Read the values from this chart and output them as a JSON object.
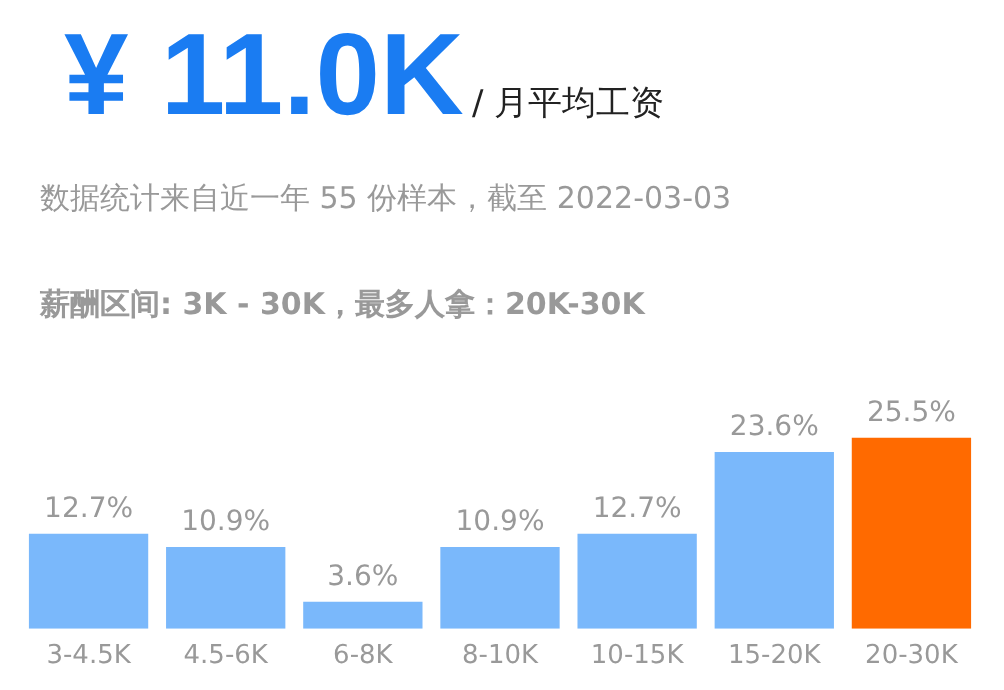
{
  "chart_data": {
    "type": "bar",
    "title": "¥ 11.0K",
    "subtitle": "数据统计来自近一年 55 份样本，截至 2022-03-03",
    "annotations": [
      "/ 月平均工资",
      "薪酬区间: 3K - 30K，最多人拿：20K-30K"
    ],
    "categories": [
      "3-4.5K",
      "4.5-6K",
      "6-8K",
      "8-10K",
      "10-15K",
      "15-20K",
      "20-30K"
    ],
    "values": [
      12.7,
      10.9,
      3.6,
      10.9,
      12.7,
      23.6,
      25.5
    ],
    "colors": [
      "#7ab8fb",
      "#7ab8fb",
      "#7ab8fb",
      "#7ab8fb",
      "#7ab8fb",
      "#7ab8fb",
      "#ff6a00"
    ],
    "value_labels": [
      "12.7%",
      "10.9%",
      "3.6%",
      "10.9%",
      "12.7%",
      "23.6%",
      "25.5%"
    ],
    "grid": false,
    "legend": false
  }
}
